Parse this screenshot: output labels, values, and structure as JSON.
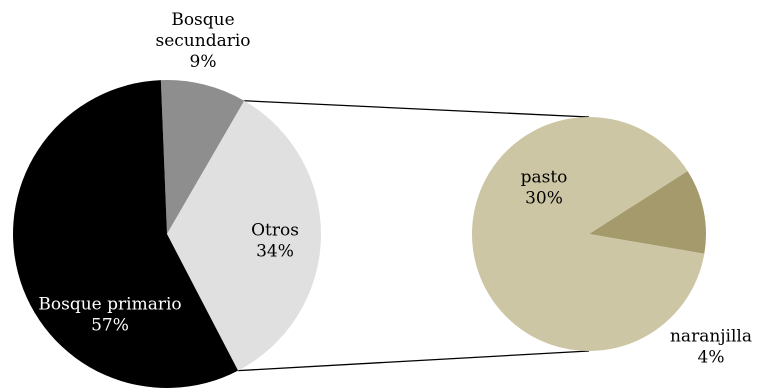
{
  "chart_data": {
    "type": "pie",
    "subtype": "pie-of-pie",
    "main_pie": {
      "slices": [
        {
          "name": "Bosque secundario",
          "label_lines": [
            "Bosque",
            "secundario"
          ],
          "value": 9,
          "value_label": "9%",
          "color": "#8e8e8e",
          "label_position": "outside",
          "label_color": "#000000"
        },
        {
          "name": "Otros",
          "label_lines": [
            "Otros"
          ],
          "value": 34,
          "value_label": "34%",
          "color": "#e0e0e0",
          "label_position": "inside",
          "label_color": "#000000"
        },
        {
          "name": "Bosque primario",
          "label_lines": [
            "Bosque primario"
          ],
          "value": 57,
          "value_label": "57%",
          "color": "#000000",
          "label_position": "inside",
          "label_color": "#ffffff"
        }
      ]
    },
    "secondary_pie": {
      "breakdown_of": "Otros",
      "slices": [
        {
          "name": "pasto",
          "label_lines": [
            "pasto"
          ],
          "value": 30,
          "value_label": "30%",
          "color": "#cdc6a4",
          "label_position": "inside",
          "label_color": "#000000"
        },
        {
          "name": "naranjilla",
          "label_lines": [
            "naranjilla"
          ],
          "value": 4,
          "value_label": "4%",
          "color": "#a59a6c",
          "label_position": "outside",
          "label_color": "#000000"
        }
      ]
    }
  }
}
